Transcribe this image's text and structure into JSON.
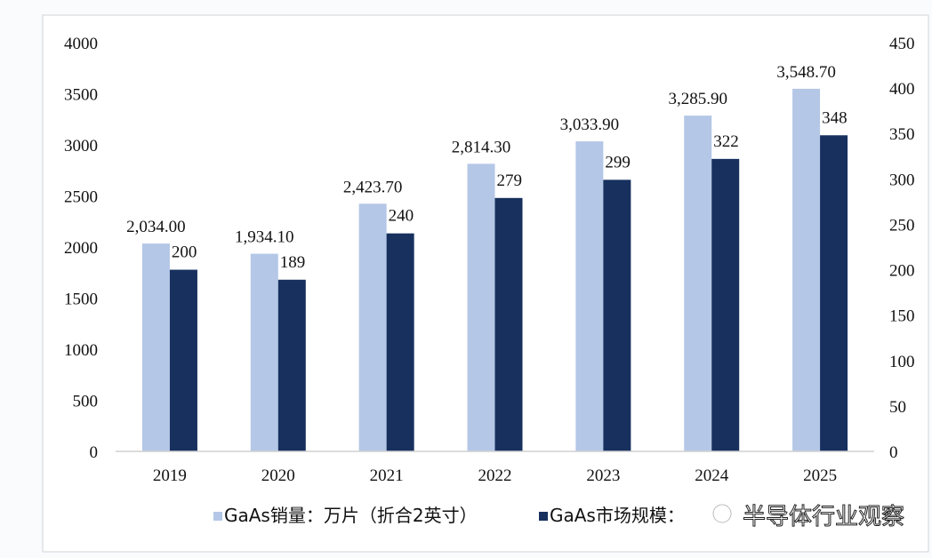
{
  "chart_data": {
    "type": "bar",
    "categories": [
      "2019",
      "2020",
      "2021",
      "2022",
      "2023",
      "2024",
      "2025"
    ],
    "series": [
      {
        "name": "GaAs销量：万片（折合2英寸）",
        "axis": "left",
        "color": "#b4c7e7",
        "values": [
          2034.0,
          1934.1,
          2423.7,
          2814.3,
          3033.9,
          3285.9,
          3548.7
        ],
        "labels": [
          "2,034.00",
          "1,934.10",
          "2,423.70",
          "2,814.30",
          "3,033.90",
          "3,285.90",
          "3,548.70"
        ]
      },
      {
        "name": "GaAs市场规模：",
        "axis": "right",
        "color": "#17305e",
        "values": [
          200,
          189,
          240,
          279,
          299,
          322,
          348
        ],
        "labels": [
          "200",
          "189",
          "240",
          "279",
          "299",
          "322",
          "348"
        ]
      }
    ],
    "y_left": {
      "range": [
        0,
        4000
      ],
      "ticks": [
        "0",
        "500",
        "1000",
        "1500",
        "2000",
        "2500",
        "3000",
        "3500",
        "4000"
      ]
    },
    "y_right": {
      "range": [
        0,
        450
      ],
      "ticks": [
        "0",
        "50",
        "100",
        "150",
        "200",
        "250",
        "300",
        "350",
        "400",
        "450"
      ]
    },
    "grid": false,
    "legend_position": "bottom"
  },
  "watermark": "半导体行业观察"
}
